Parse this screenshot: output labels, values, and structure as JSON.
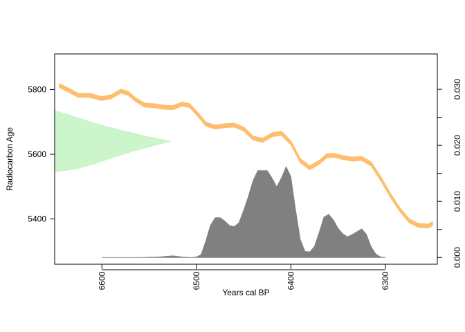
{
  "chart_data": {
    "type": "area",
    "xlabel": "Years cal BP",
    "ylabel": "Radiocarbon Age",
    "x_reversed": true,
    "xlim": [
      6650,
      6245
    ],
    "ylim": [
      5260,
      5910
    ],
    "y2lim": [
      -0.0012,
      0.0363
    ],
    "x_ticks": [
      6600,
      6500,
      6400,
      6300
    ],
    "y_ticks": [
      5400,
      5600,
      5800
    ],
    "y2_ticks": [
      0.0,
      0.005,
      0.01,
      0.015,
      0.02,
      0.025,
      0.03
    ],
    "y2_tick_labels": [
      "0.000",
      "0.010",
      "0.020",
      "0.030"
    ],
    "y2_labeled_ticks": [
      0.0,
      0.01,
      0.02,
      0.03
    ],
    "colors": {
      "calibration_curve": "#FDBF6F",
      "radiocarbon_density": "#CCF5CC",
      "calendar_density": "#808080"
    },
    "series": [
      {
        "role": "calibration-curve",
        "x": [
          6645,
          6635,
          6625,
          6613,
          6600,
          6590,
          6580,
          6572,
          6565,
          6555,
          6545,
          6533,
          6525,
          6515,
          6507,
          6497,
          6490,
          6480,
          6470,
          6460,
          6450,
          6440,
          6430,
          6420,
          6410,
          6400,
          6390,
          6380,
          6370,
          6362,
          6355,
          6345,
          6335,
          6325,
          6315,
          6305,
          6295,
          6285,
          6275,
          6265,
          6255,
          6250
        ],
        "y": [
          5812,
          5798,
          5782,
          5782,
          5772,
          5778,
          5795,
          5788,
          5770,
          5752,
          5750,
          5745,
          5744,
          5755,
          5750,
          5718,
          5693,
          5684,
          5688,
          5690,
          5678,
          5650,
          5643,
          5660,
          5665,
          5635,
          5580,
          5558,
          5575,
          5595,
          5597,
          5590,
          5585,
          5587,
          5570,
          5525,
          5475,
          5430,
          5395,
          5380,
          5378,
          5385
        ],
        "half_width": 6
      },
      {
        "role": "radiocarbon-age-density",
        "anchor_x": 6650,
        "y": [
          5545,
          5555,
          5570,
          5590,
          5610,
          5625,
          5640,
          5655,
          5670,
          5685,
          5700,
          5715,
          5735
        ],
        "density": [
          0.0,
          0.0045,
          0.0079,
          0.0117,
          0.0158,
          0.0193,
          0.0232,
          0.0185,
          0.0143,
          0.0105,
          0.0071,
          0.0042,
          0.0
        ]
      },
      {
        "role": "calendar-age-density",
        "x": [
          6600,
          6580,
          6560,
          6540,
          6525,
          6515,
          6505,
          6500,
          6495,
          6490,
          6485,
          6480,
          6475,
          6470,
          6465,
          6460,
          6455,
          6450,
          6445,
          6440,
          6435,
          6430,
          6425,
          6420,
          6415,
          6410,
          6405,
          6400,
          6395,
          6390,
          6385,
          6380,
          6375,
          6370,
          6365,
          6360,
          6355,
          6350,
          6345,
          6340,
          6335,
          6330,
          6325,
          6320,
          6315,
          6310,
          6305,
          6300
        ],
        "density": [
          0.0,
          0.0,
          0.0,
          0.0001,
          0.0003,
          0.0001,
          0.0,
          0.0001,
          0.0005,
          0.003,
          0.0058,
          0.0071,
          0.0071,
          0.0065,
          0.0057,
          0.0055,
          0.0062,
          0.0084,
          0.0109,
          0.0137,
          0.0155,
          0.0155,
          0.0155,
          0.0142,
          0.0126,
          0.0142,
          0.0162,
          0.0144,
          0.0085,
          0.0032,
          0.0011,
          0.001,
          0.002,
          0.0045,
          0.0072,
          0.0077,
          0.0067,
          0.0052,
          0.0042,
          0.0037,
          0.0041,
          0.0046,
          0.0051,
          0.0041,
          0.0019,
          0.0006,
          0.0001,
          0.0
        ]
      }
    ]
  }
}
